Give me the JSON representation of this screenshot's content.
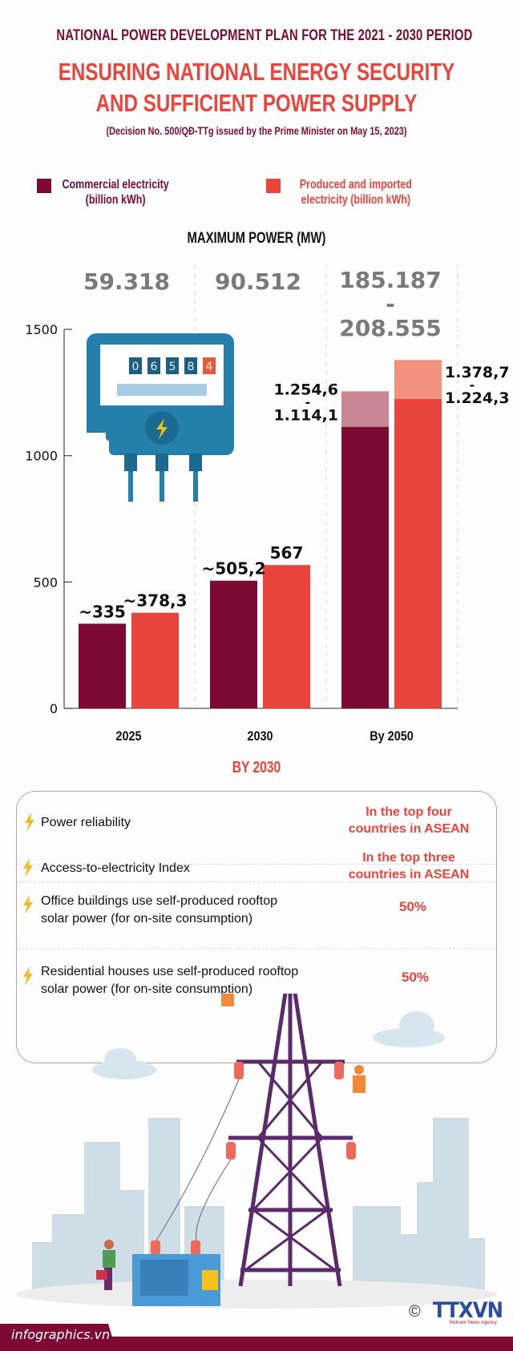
{
  "header": {
    "top_title": "NATIONAL POWER DEVELOPMENT PLAN FOR THE 2021 - 2030 PERIOD",
    "main_title_line1": "ENSURING NATIONAL ENERGY SECURITY",
    "main_title_line2": "AND SUFFICIENT POWER SUPPLY",
    "subtitle": "(Decision No. 500/QĐ-TTg issued by the Prime Minister on May 15, 2023)"
  },
  "legend": [
    {
      "label_line1": "Commercial electricity",
      "label_line2": "(billion kWh)",
      "color": "#7d0a34"
    },
    {
      "label_line1": "Produced and imported",
      "label_line2": "electricity (billion kWh)",
      "color": "#e9453c"
    }
  ],
  "meter_icon": {
    "digits": [
      "0",
      "6",
      "5",
      "8",
      "4"
    ]
  },
  "chart_data": {
    "type": "bar",
    "title": "MAXIMUM POWER (MW)",
    "xlabel": "",
    "ylabel": "",
    "ylim": [
      0,
      1500
    ],
    "yticks": [
      0,
      500,
      1000,
      1500
    ],
    "ytick_labels": [
      "0",
      "500",
      "1000",
      "1500"
    ],
    "grid": false,
    "legend_position": "top",
    "categories": [
      "2025",
      "2030",
      "By 2050"
    ],
    "max_power_labels": [
      "59.318",
      "90.512",
      "185.187\n-\n208.555"
    ],
    "max_power": [
      {
        "category": "2025",
        "low": 59318,
        "high": 59318
      },
      {
        "category": "2030",
        "low": 90512,
        "high": 90512
      },
      {
        "category": "By 2050",
        "low": 185187,
        "high": 208555
      }
    ],
    "series": [
      {
        "name": "Commercial electricity (billion kWh)",
        "color": "#7d0a34",
        "range_color": "#c98796",
        "values": [
          335,
          505.2,
          1114.1
        ],
        "upper_values": [
          null,
          null,
          1254.6
        ],
        "labels": [
          "~335",
          "~505,2",
          "1.254,6\n-\n1.114,1"
        ]
      },
      {
        "name": "Produced and imported electricity (billion kWh)",
        "color": "#e9453c",
        "range_color": "#f2917e",
        "values": [
          378.3,
          567,
          1224.3
        ],
        "upper_values": [
          null,
          null,
          1378.7
        ],
        "labels": [
          "~378,3",
          "567",
          "1.378,7\n-\n1.224,3"
        ]
      }
    ]
  },
  "targets": {
    "title": "BY 2030",
    "rows": [
      {
        "label": "Power reliability",
        "value_line1": "In the top four",
        "value_line2": "countries in ASEAN"
      },
      {
        "label": "Access-to-electricity Index",
        "value_line1": "In the top three",
        "value_line2": "countries in ASEAN"
      },
      {
        "label": "Office buildings use self-produced rooftop solar power (for on-site consumption)",
        "label_line1": "Office buildings use self-produced rooftop",
        "label_line2": "solar power (for on-site consumption)",
        "value_line1": "50%",
        "value_line2": ""
      },
      {
        "label": "Residential houses use self-produced rooftop solar power (for on-site consumption)",
        "label_line1": "Residential houses use self-produced rooftop",
        "label_line2": "solar power (for on-site consumption)",
        "value_line1": "50%",
        "value_line2": ""
      }
    ]
  },
  "footer": {
    "site": "infographics.vn",
    "copyright_symbol": "©",
    "logo_text": "TTXVN",
    "logo_subtext": "Vietnam News Agency"
  }
}
